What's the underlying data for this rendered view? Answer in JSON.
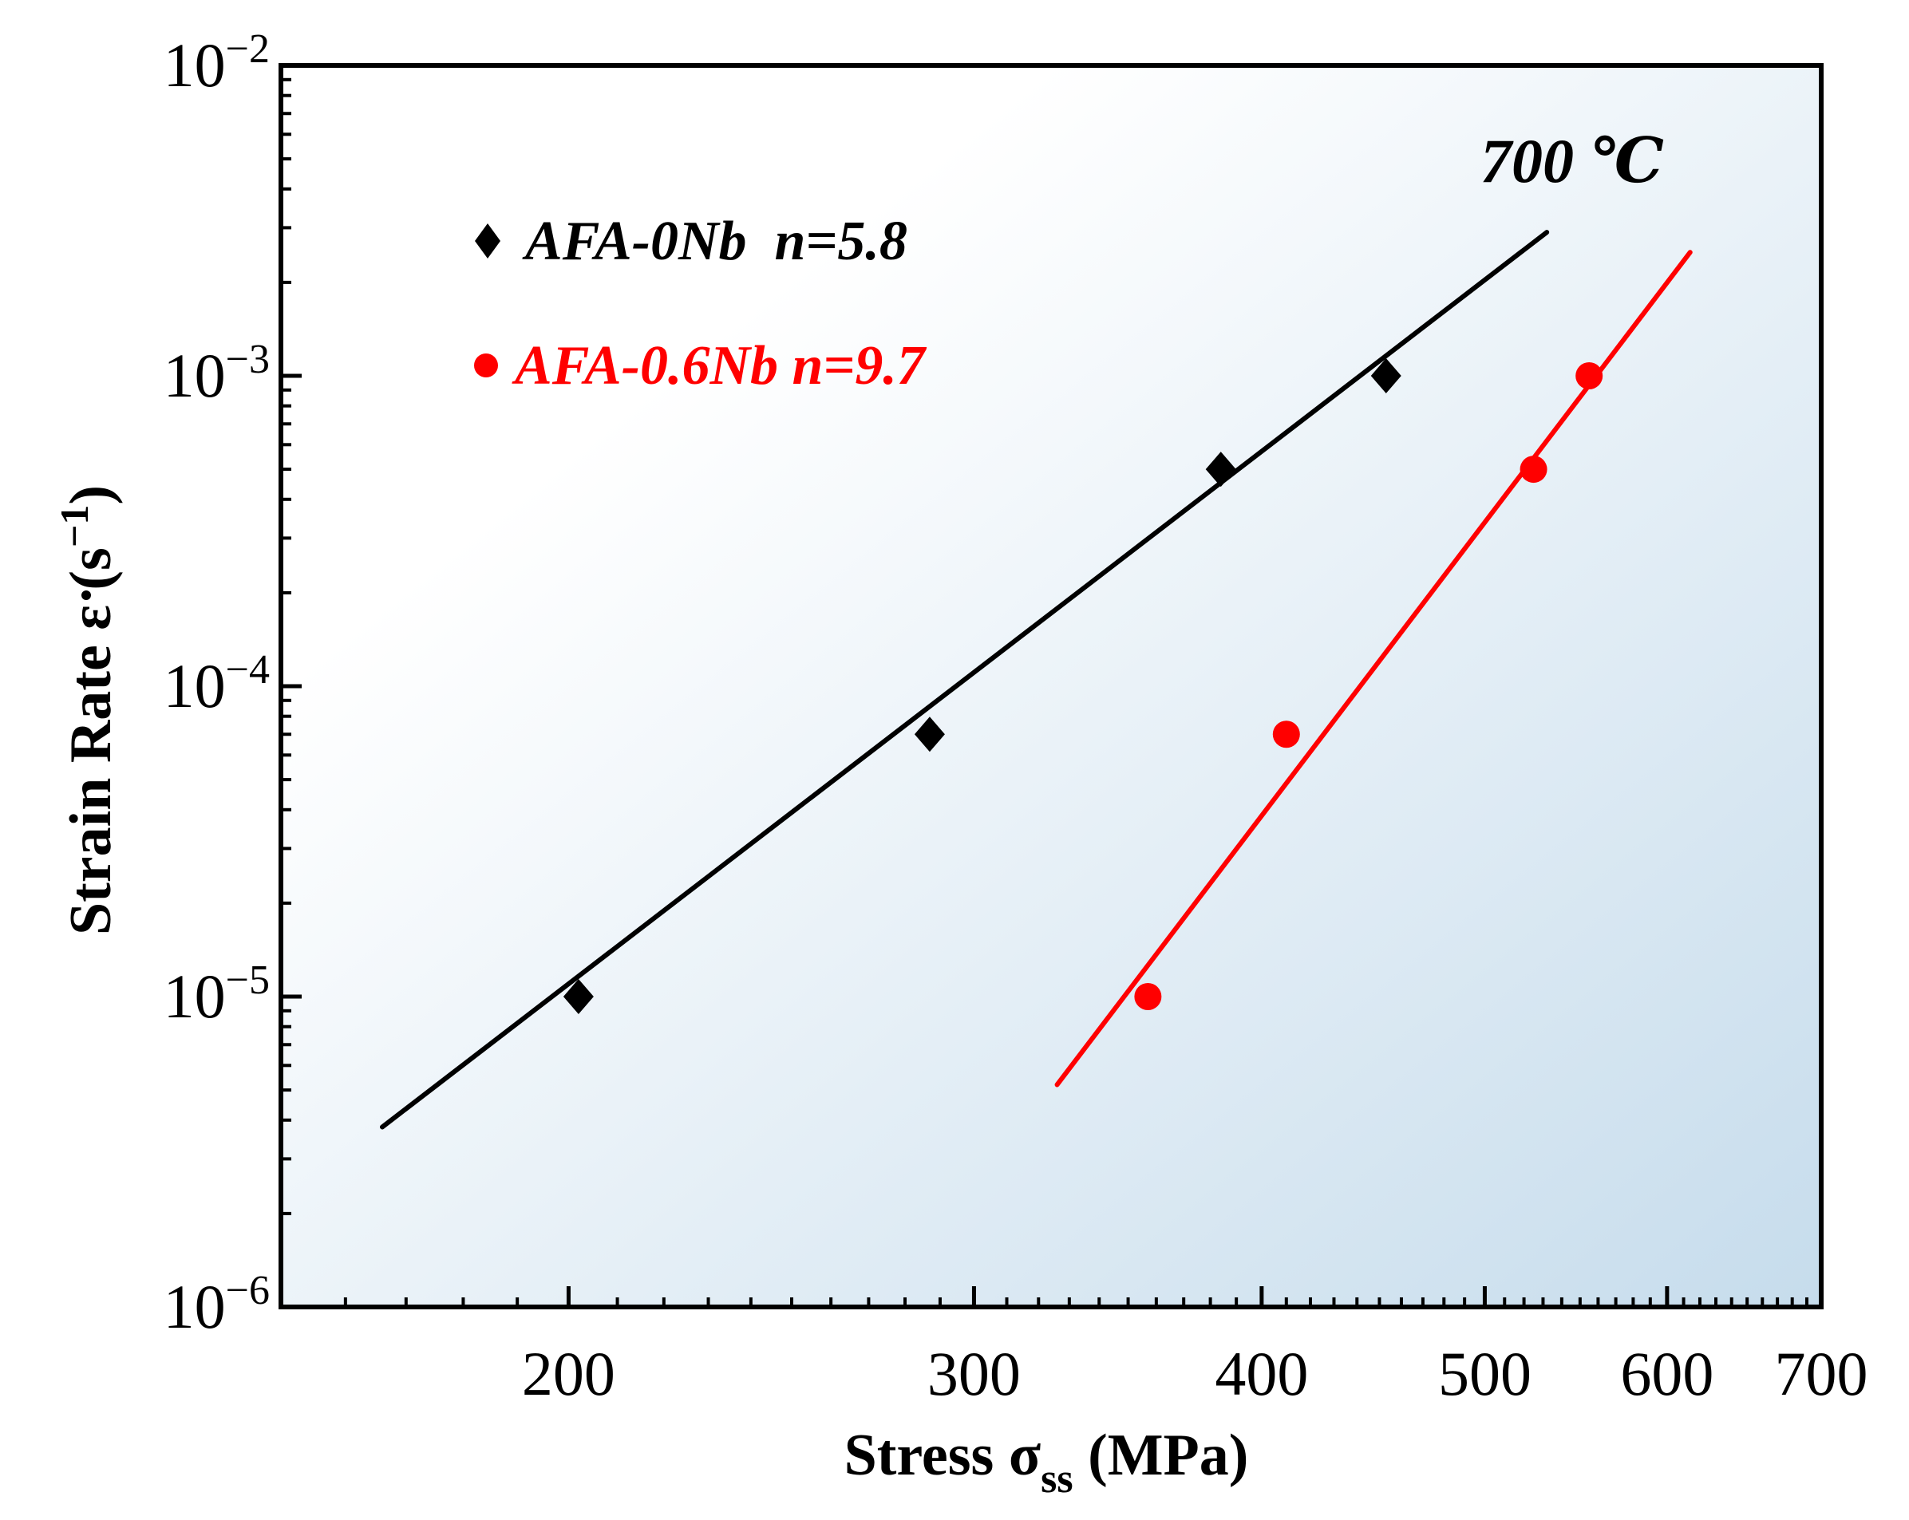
{
  "chart_data": {
    "type": "scatter",
    "title": "",
    "annotation": "700 ℃",
    "xlabel": {
      "main": "Stress σ",
      "sub": "ss",
      "unit": " (MPa)"
    },
    "ylabel": {
      "main": "Strain Rate ε",
      "unit": " (s",
      "sup": "−1",
      "close": ")"
    },
    "xscale": "log",
    "yscale": "log",
    "xlim": [
      150,
      700
    ],
    "ylim": [
      1e-06,
      0.01
    ],
    "x_ticks": [
      {
        "value": 200,
        "label": "200"
      },
      {
        "value": 300,
        "label": "300"
      },
      {
        "value": 400,
        "label": "400"
      },
      {
        "value": 500,
        "label": "500"
      },
      {
        "value": 600,
        "label": "600"
      },
      {
        "value": 700,
        "label": "700"
      }
    ],
    "y_ticks": [
      {
        "value": 1e-06,
        "base": "10",
        "exp": "−6"
      },
      {
        "value": 1e-05,
        "base": "10",
        "exp": "−5"
      },
      {
        "value": 0.0001,
        "base": "10",
        "exp": "−4"
      },
      {
        "value": 0.001,
        "base": "10",
        "exp": "−3"
      },
      {
        "value": 0.01,
        "base": "10",
        "exp": "−2"
      }
    ],
    "legend_position": "top-left",
    "series": [
      {
        "name": "AFA-0Nb",
        "legend_label": "AFA-0Nb  n=5.8",
        "n": 5.8,
        "color": "#000000",
        "marker": "diamond",
        "x": [
          202,
          287,
          384,
          453
        ],
        "y": [
          1e-05,
          7e-05,
          0.0005,
          0.001
        ],
        "fit": {
          "x": [
            166,
            532
          ],
          "y": [
            3.8e-06,
            0.0029
          ]
        }
      },
      {
        "name": "AFA-0.6Nb",
        "legend_label": "AFA-0.6Nb n=9.7",
        "n": 9.7,
        "color": "#ff0000",
        "marker": "circle",
        "x": [
          357,
          410,
          525,
          555
        ],
        "y": [
          1e-05,
          7e-05,
          0.0005,
          0.001
        ],
        "fit": {
          "x": [
            326,
            614
          ],
          "y": [
            5.2e-06,
            0.0025
          ]
        }
      }
    ],
    "background": {
      "gradient_start": "#ffffff",
      "gradient_end": "#c6dcec"
    }
  }
}
